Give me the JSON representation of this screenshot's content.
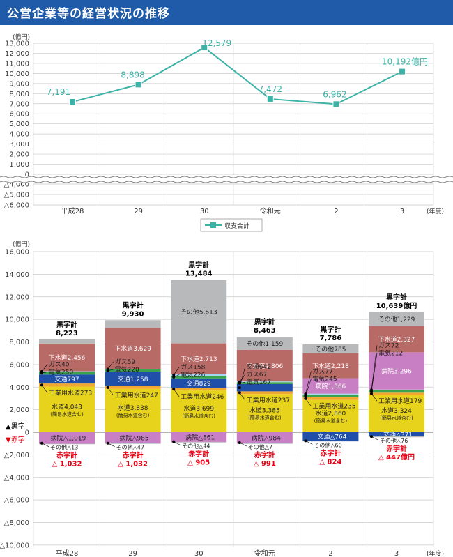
{
  "title": "公営企業等の経営状況の推移",
  "colors": {
    "title_bg": "#1f5ba8",
    "line": "#3bb3a6",
    "sewer": "#b86a67",
    "water": "#e8d31c",
    "traffic": "#1f4fa8",
    "hospital": "#c97fc3",
    "other": "#b7b9bb",
    "industrial_water": "#f0a830",
    "electric": "#3aa24a",
    "gas": "#a5d6ee",
    "red": "#e60012"
  },
  "chart_data": [
    {
      "type": "line",
      "y_unit": "(億円)",
      "x_unit": "(年度)",
      "categories": [
        "平成28",
        "29",
        "30",
        "令和元",
        "2",
        "3"
      ],
      "series": [
        {
          "name": "収支合計",
          "values": [
            7191,
            8898,
            12579,
            7472,
            6962,
            10192
          ]
        }
      ],
      "value_labels": [
        "7,191",
        "8,898",
        "12,579",
        "7,472",
        "6,962",
        "10,192億円"
      ],
      "ylim": [
        -6000,
        13000
      ],
      "yticks": [
        {
          "v": 13000,
          "label": "13,000"
        },
        {
          "v": 12000,
          "label": "12,000"
        },
        {
          "v": 11000,
          "label": "11,000"
        },
        {
          "v": 10000,
          "label": "10,000"
        },
        {
          "v": 9000,
          "label": "9,000"
        },
        {
          "v": 8000,
          "label": "8,000"
        },
        {
          "v": 7000,
          "label": "7,000"
        },
        {
          "v": 6000,
          "label": "6,000"
        },
        {
          "v": 5000,
          "label": "5,000"
        },
        {
          "v": 4000,
          "label": "4,000"
        },
        {
          "v": 3000,
          "label": "3,000"
        },
        {
          "v": 2000,
          "label": "2,000"
        },
        {
          "v": 1000,
          "label": "1,000"
        },
        {
          "v": 0,
          "label": "0"
        },
        {
          "v": -4000,
          "label": "△4,000"
        },
        {
          "v": -5000,
          "label": "△5,000"
        },
        {
          "v": -6000,
          "label": "△6,000"
        }
      ],
      "legend": "収支合計"
    },
    {
      "type": "bar",
      "stacked": true,
      "y_unit": "(億円)",
      "x_unit": "(年度)",
      "categories": [
        "平成28",
        "29",
        "30",
        "令和元",
        "2",
        "3"
      ],
      "ylim": [
        -10000,
        16000
      ],
      "yticks": [
        {
          "v": 16000,
          "label": "16,000"
        },
        {
          "v": 14000,
          "label": "14,000"
        },
        {
          "v": 12000,
          "label": "12,000"
        },
        {
          "v": 10000,
          "label": "10,000"
        },
        {
          "v": 8000,
          "label": "8,000"
        },
        {
          "v": 6000,
          "label": "6,000"
        },
        {
          "v": 4000,
          "label": "4,000"
        },
        {
          "v": 2000,
          "label": "2,000"
        },
        {
          "v": 0,
          "label": "0"
        },
        {
          "v": -2000,
          "label": "△2,000"
        },
        {
          "v": -4000,
          "label": "△4,000"
        },
        {
          "v": -6000,
          "label": "△6,000"
        },
        {
          "v": -8000,
          "label": "△8,000"
        },
        {
          "v": -10000,
          "label": "△10,000"
        }
      ],
      "zero_legend": {
        "black": "▲黒字",
        "red": "▼赤字"
      },
      "positive_totals": [
        {
          "label": "黒字計",
          "value": "8,223"
        },
        {
          "label": "黒字計",
          "value": "9,930"
        },
        {
          "label": "黒字計",
          "value": "13,484"
        },
        {
          "label": "黒字計",
          "value": "8,463"
        },
        {
          "label": "黒字計",
          "value": "7,786"
        },
        {
          "label": "黒字計",
          "value": "10,639億円"
        }
      ],
      "negative_totals": [
        {
          "label": "赤字計",
          "value": "△ 1,032"
        },
        {
          "label": "赤字計",
          "value": "△ 1,032"
        },
        {
          "label": "赤字計",
          "value": "△ 905"
        },
        {
          "label": "赤字計",
          "value": "△ 991"
        },
        {
          "label": "赤字計",
          "value": "△ 824"
        },
        {
          "label": "赤字計",
          "value": "△ 447億円"
        }
      ],
      "positive_segments": [
        [
          {
            "key": "water",
            "label": "水道4,043",
            "sub": "(簡易水道含む)",
            "value": 4043
          },
          {
            "key": "industrial_water",
            "label": "工業用水道273",
            "value": 273
          },
          {
            "key": "traffic",
            "label": "交通797",
            "value": 797
          },
          {
            "key": "electric",
            "label": "電気250",
            "value": 250
          },
          {
            "key": "gas",
            "label": "ガス40",
            "value": 40
          },
          {
            "key": "sewer",
            "label": "下水道2,456",
            "value": 2456
          },
          {
            "key": "other",
            "label": "その他364",
            "value": 364
          }
        ],
        [
          {
            "key": "water",
            "label": "水道3,838",
            "sub": "(簡易水道含む)",
            "value": 3838
          },
          {
            "key": "industrial_water",
            "label": "工業用水道247",
            "value": 247
          },
          {
            "key": "traffic",
            "label": "交通1,258",
            "value": 1258
          },
          {
            "key": "electric",
            "label": "電気220",
            "value": 220
          },
          {
            "key": "gas",
            "label": "ガス59",
            "value": 59
          },
          {
            "key": "sewer",
            "label": "下水道3,629",
            "value": 3629
          },
          {
            "key": "other",
            "label": "その他679",
            "value": 679
          }
        ],
        [
          {
            "key": "water",
            "label": "水道3,699",
            "sub": "(簡易水道含む)",
            "value": 3699
          },
          {
            "key": "industrial_water",
            "label": "工業用水道246",
            "value": 246
          },
          {
            "key": "traffic",
            "label": "交通829",
            "value": 829
          },
          {
            "key": "electric",
            "label": "電気226",
            "value": 226
          },
          {
            "key": "gas",
            "label": "ガス158",
            "value": 158
          },
          {
            "key": "sewer",
            "label": "下水道2,713",
            "value": 2713
          },
          {
            "key": "other",
            "label": "その他5,613",
            "value": 5613
          }
        ],
        [
          {
            "key": "water",
            "label": "水道3,385",
            "sub": "(簡易水道含む)",
            "value": 3385
          },
          {
            "key": "industrial_water",
            "label": "工業用水道237",
            "value": 237
          },
          {
            "key": "traffic",
            "label": "交通642",
            "value": 642
          },
          {
            "key": "electric",
            "label": "電気167",
            "value": 167
          },
          {
            "key": "gas",
            "label": "ガス67",
            "value": 67
          },
          {
            "key": "sewer",
            "label": "下水道2,806",
            "value": 2806
          },
          {
            "key": "other",
            "label": "その他1,159",
            "value": 1159
          }
        ],
        [
          {
            "key": "water",
            "label": "水道2,860",
            "sub": "(簡易水道含む)",
            "value": 2860
          },
          {
            "key": "industrial_water",
            "label": "工業用水道235",
            "value": 235
          },
          {
            "key": "electric",
            "label": "電気245",
            "value": 245
          },
          {
            "key": "gas",
            "label": "ガス77",
            "value": 77
          },
          {
            "key": "hospital",
            "label": "病院1,366",
            "value": 1366
          },
          {
            "key": "sewer",
            "label": "下水道2,218",
            "value": 2218
          },
          {
            "key": "other",
            "label": "その他785",
            "value": 785
          }
        ],
        [
          {
            "key": "water",
            "label": "水道3,324",
            "sub": "(簡易水道含む)",
            "value": 3324
          },
          {
            "key": "industrial_water",
            "label": "工業用水道179",
            "value": 179
          },
          {
            "key": "electric",
            "label": "電気212",
            "value": 212
          },
          {
            "key": "gas",
            "label": "ガス72",
            "value": 72
          },
          {
            "key": "hospital",
            "label": "病院3,296",
            "value": 3296
          },
          {
            "key": "sewer",
            "label": "下水道2,327",
            "value": 2327
          },
          {
            "key": "other",
            "label": "その他1,229",
            "value": 1229
          }
        ]
      ],
      "negative_segments": [
        [
          {
            "key": "hospital",
            "label": "病院△1,019",
            "value": -1019
          },
          {
            "key": "other",
            "label": "その他△13",
            "value": -13
          }
        ],
        [
          {
            "key": "hospital",
            "label": "病院△985",
            "value": -985
          },
          {
            "key": "other",
            "label": "その他△47",
            "value": -47
          }
        ],
        [
          {
            "key": "hospital",
            "label": "病院△861",
            "value": -861
          },
          {
            "key": "other",
            "label": "その他△44",
            "value": -44
          }
        ],
        [
          {
            "key": "hospital",
            "label": "病院△984",
            "value": -984
          },
          {
            "key": "other",
            "label": "その他△7",
            "value": -7
          }
        ],
        [
          {
            "key": "traffic",
            "label": "交通△764",
            "value": -764
          },
          {
            "key": "other",
            "label": "その他△60",
            "value": -60
          }
        ],
        [
          {
            "key": "traffic",
            "label": "交通△371",
            "value": -371
          },
          {
            "key": "other",
            "label": "その他△76",
            "value": -76
          }
        ]
      ]
    }
  ]
}
